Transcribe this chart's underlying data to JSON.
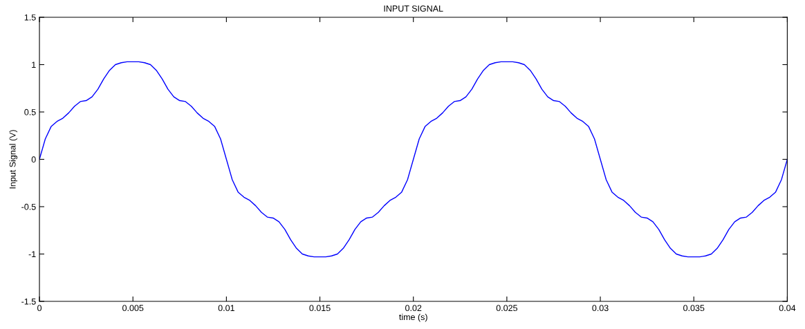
{
  "chart_data": {
    "type": "line",
    "title": "INPUT SIGNAL",
    "xlabel": "time (s)",
    "ylabel": "Input Signal (V)",
    "x": [
      0,
      0.0003125,
      0.000625,
      0.0009375,
      0.00125,
      0.0015625,
      0.001875,
      0.0021875,
      0.0025,
      0.0028125,
      0.003125,
      0.0034375,
      0.00375,
      0.0040625,
      0.004375,
      0.0046875,
      0.005,
      0.0053125,
      0.005625,
      0.0059375,
      0.00625,
      0.0065625,
      0.006875,
      0.0071875,
      0.0075,
      0.0078125,
      0.008125,
      0.0084375,
      0.00875,
      0.0090625,
      0.009375,
      0.0096875,
      0.01,
      0.0103125,
      0.010625,
      0.0109375,
      0.01125,
      0.0115625,
      0.011875,
      0.0121875,
      0.0125,
      0.0128125,
      0.013125,
      0.0134375,
      0.01375,
      0.0140625,
      0.014375,
      0.0146875,
      0.015,
      0.0153125,
      0.015625,
      0.0159375,
      0.01625,
      0.0165625,
      0.016875,
      0.0171875,
      0.0175,
      0.0178125,
      0.018125,
      0.0184375,
      0.01875,
      0.0190625,
      0.019375,
      0.0196875,
      0.02,
      0.0203125,
      0.020625,
      0.0209375,
      0.02125,
      0.0215625,
      0.021875,
      0.0221875,
      0.0225,
      0.0228125,
      0.023125,
      0.0234375,
      0.02375,
      0.0240625,
      0.024375,
      0.0246875,
      0.025,
      0.0253125,
      0.025625,
      0.0259375,
      0.02625,
      0.0265625,
      0.026875,
      0.0271875,
      0.0275,
      0.0278125,
      0.028125,
      0.0284375,
      0.02875,
      0.0290625,
      0.029375,
      0.0296875,
      0.03,
      0.0303125,
      0.030625,
      0.0309375,
      0.03125,
      0.0315625,
      0.031875,
      0.0321875,
      0.0325,
      0.0328125,
      0.033125,
      0.0334375,
      0.03375,
      0.0340625,
      0.034375,
      0.0346875,
      0.035,
      0.0353125,
      0.035625,
      0.0359375,
      0.03625,
      0.0365625,
      0.036875,
      0.0371875,
      0.0375,
      0.0378125,
      0.038125,
      0.0384375,
      0.03875,
      0.0390625,
      0.039375,
      0.0396875,
      0.04
    ],
    "series": [
      {
        "color": "#0000ff",
        "values": [
          0,
          0.215,
          0.346,
          0.4,
          0.434,
          0.49,
          0.56,
          0.61,
          0.62,
          0.66,
          0.74,
          0.85,
          0.94,
          1.0,
          1.02,
          1.03,
          1.03,
          1.03,
          1.02,
          1.0,
          0.94,
          0.85,
          0.74,
          0.66,
          0.62,
          0.61,
          0.56,
          0.49,
          0.434,
          0.4,
          0.346,
          0.215,
          0,
          -0.215,
          -0.346,
          -0.4,
          -0.434,
          -0.49,
          -0.56,
          -0.61,
          -0.62,
          -0.66,
          -0.74,
          -0.85,
          -0.94,
          -1.0,
          -1.02,
          -1.03,
          -1.03,
          -1.03,
          -1.02,
          -1.0,
          -0.94,
          -0.85,
          -0.74,
          -0.66,
          -0.62,
          -0.61,
          -0.56,
          -0.49,
          -0.434,
          -0.4,
          -0.346,
          -0.215,
          0,
          0.215,
          0.346,
          0.4,
          0.434,
          0.49,
          0.56,
          0.61,
          0.62,
          0.66,
          0.74,
          0.85,
          0.94,
          1.0,
          1.02,
          1.03,
          1.03,
          1.03,
          1.02,
          1.0,
          0.94,
          0.85,
          0.74,
          0.66,
          0.62,
          0.61,
          0.56,
          0.49,
          0.434,
          0.4,
          0.346,
          0.215,
          0,
          -0.215,
          -0.346,
          -0.4,
          -0.434,
          -0.49,
          -0.56,
          -0.61,
          -0.62,
          -0.66,
          -0.74,
          -0.85,
          -0.94,
          -1.0,
          -1.02,
          -1.03,
          -1.03,
          -1.03,
          -1.02,
          -1.0,
          -0.94,
          -0.85,
          -0.74,
          -0.66,
          -0.62,
          -0.61,
          -0.56,
          -0.49,
          -0.434,
          -0.4,
          -0.346,
          -0.215,
          0
        ]
      }
    ],
    "xlim": [
      0,
      0.04
    ],
    "xticks": [
      0,
      0.005,
      0.01,
      0.015,
      0.02,
      0.025,
      0.03,
      0.035,
      0.04
    ],
    "ylim": [
      -1.5,
      1.5
    ],
    "yticks": [
      -1.5,
      -1,
      -0.5,
      0,
      0.5,
      1,
      1.5
    ],
    "grid": false,
    "legend": false
  }
}
